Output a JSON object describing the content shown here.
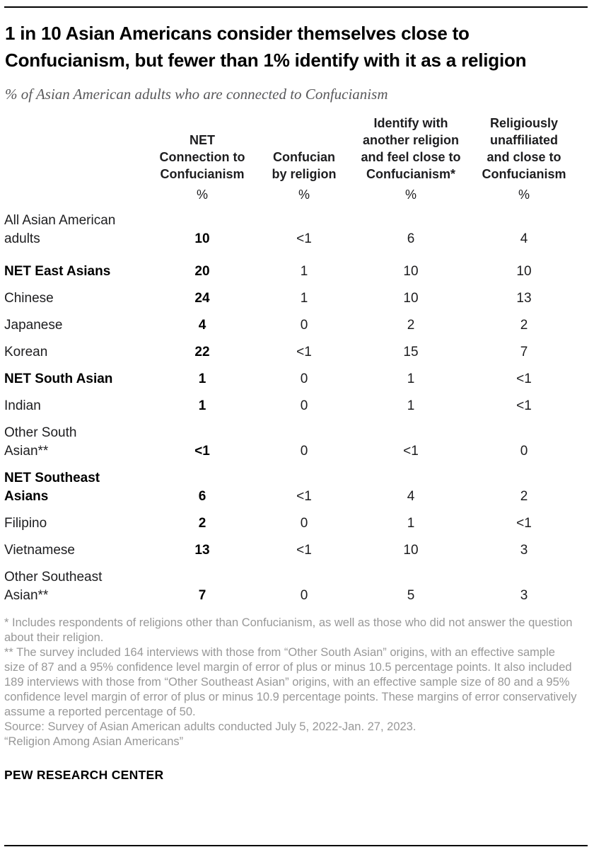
{
  "chart_data": {
    "type": "table",
    "title": "1 in 10 Asian Americans consider themselves close to Confucianism, but fewer than 1% identify with it as a religion",
    "subtitle": "% of Asian American adults who are connected to Confucianism",
    "columns": [
      "NET\nConnection to\nConfucianism",
      "Confucian\nby religion",
      "Identify with\nanother religion\nand feel close to\nConfucianism*",
      "Religiously\nunaffiliated\nand close to\nConfucianism"
    ],
    "unit_row": [
      "%",
      "%",
      "%",
      "%"
    ],
    "rows": [
      {
        "label": "All Asian American\nadults",
        "bold": false,
        "values": [
          "10",
          "<1",
          "6",
          "4"
        ]
      },
      {
        "label": "NET East Asians",
        "bold": true,
        "values": [
          "20",
          "1",
          "10",
          "10"
        ]
      },
      {
        "label": "Chinese",
        "bold": false,
        "values": [
          "24",
          "1",
          "10",
          "13"
        ]
      },
      {
        "label": "Japanese",
        "bold": false,
        "values": [
          "4",
          "0",
          "2",
          "2"
        ]
      },
      {
        "label": "Korean",
        "bold": false,
        "values": [
          "22",
          "<1",
          "15",
          "7"
        ]
      },
      {
        "label": "NET South Asian",
        "bold": true,
        "values": [
          "1",
          "0",
          "1",
          "<1"
        ]
      },
      {
        "label": "Indian",
        "bold": false,
        "values": [
          "1",
          "0",
          "1",
          "<1"
        ]
      },
      {
        "label": "Other South\nAsian**",
        "bold": false,
        "values": [
          "<1",
          "0",
          "<1",
          "0"
        ]
      },
      {
        "label": "NET Southeast\nAsians",
        "bold": true,
        "values": [
          "6",
          "<1",
          "4",
          "2"
        ]
      },
      {
        "label": "Filipino",
        "bold": false,
        "values": [
          "2",
          "0",
          "1",
          "<1"
        ]
      },
      {
        "label": "Vietnamese",
        "bold": false,
        "values": [
          "13",
          "<1",
          "10",
          "3"
        ]
      },
      {
        "label": "Other Southeast\nAsian**",
        "bold": false,
        "values": [
          "7",
          "0",
          "5",
          "3"
        ]
      }
    ]
  },
  "notes": {
    "asterisk": "* Includes respondents of religions other than Confucianism, as well as those who did not answer the question about their religion.",
    "double_asterisk": "** The survey included 164 interviews with those from “Other South Asian” origins, with an effective sample size of 87 and a 95% confidence level margin of error of plus or minus 10.5 percentage points. It also included 189 interviews with those from “Other Southeast Asian” origins, with an effective sample size of 80 and a 95% confidence level margin of error of plus or minus 10.9 percentage points. These margins of error conservatively assume a reported percentage of 50.",
    "source": "Source: Survey of Asian American adults conducted July 5, 2022-Jan. 27, 2023.",
    "report": "“Religion Among Asian Americans”"
  },
  "footer": {
    "brand": "PEW RESEARCH CENTER"
  },
  "colors": {
    "background": "#ffffff",
    "title_text": "#000000",
    "subtitle_text": "#58585a",
    "table_text": "#1d1d1f",
    "notes_text": "#989898",
    "rule": "#000000"
  }
}
